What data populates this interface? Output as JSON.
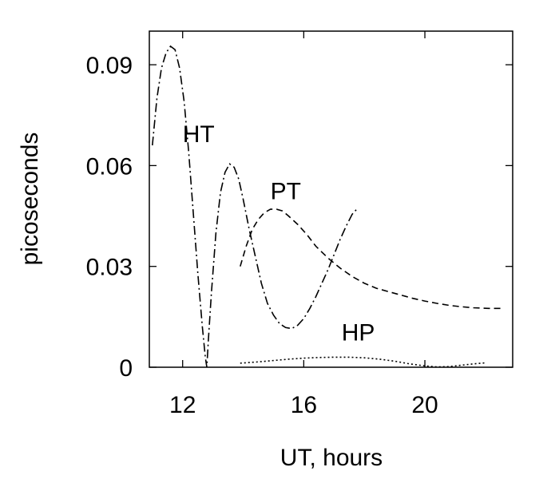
{
  "chart_data": {
    "type": "line",
    "title": "",
    "xlabel": "UT, hours",
    "ylabel": "picoseconds",
    "xlim": [
      10.9,
      22.9
    ],
    "ylim": [
      0,
      0.1
    ],
    "xticks": [
      {
        "value": 12,
        "label": "12"
      },
      {
        "value": 16,
        "label": "16"
      },
      {
        "value": 20,
        "label": "20"
      }
    ],
    "yticks": [
      {
        "value": 0,
        "label": "0"
      },
      {
        "value": 0.03,
        "label": "0.03"
      },
      {
        "value": 0.06,
        "label": "0.06"
      },
      {
        "value": 0.09,
        "label": "0.09"
      }
    ],
    "grid": false,
    "series": [
      {
        "name": "HT",
        "dash": "dash-dot",
        "label_at": {
          "x": 12.0,
          "y": 0.067
        },
        "points": [
          [
            11.0,
            0.066
          ],
          [
            11.15,
            0.08
          ],
          [
            11.3,
            0.089
          ],
          [
            11.45,
            0.0935
          ],
          [
            11.6,
            0.0955
          ],
          [
            11.75,
            0.0945
          ],
          [
            11.9,
            0.089
          ],
          [
            12.05,
            0.079
          ],
          [
            12.2,
            0.064
          ],
          [
            12.35,
            0.046
          ],
          [
            12.5,
            0.028
          ],
          [
            12.65,
            0.012
          ],
          [
            12.75,
            0.003
          ],
          [
            12.8,
            0.0
          ],
          [
            12.85,
            0.008
          ],
          [
            12.95,
            0.022
          ],
          [
            13.1,
            0.04
          ],
          [
            13.25,
            0.052
          ],
          [
            13.4,
            0.058
          ],
          [
            13.55,
            0.0605
          ],
          [
            13.7,
            0.0595
          ],
          [
            13.85,
            0.056
          ],
          [
            14.0,
            0.05
          ],
          [
            14.2,
            0.041
          ],
          [
            14.4,
            0.033
          ],
          [
            14.6,
            0.025
          ],
          [
            14.8,
            0.019
          ],
          [
            15.0,
            0.0155
          ],
          [
            15.2,
            0.013
          ],
          [
            15.4,
            0.0118
          ],
          [
            15.6,
            0.0115
          ],
          [
            15.8,
            0.0125
          ],
          [
            16.0,
            0.0145
          ],
          [
            16.2,
            0.0175
          ],
          [
            16.4,
            0.021
          ],
          [
            16.6,
            0.025
          ],
          [
            16.8,
            0.029
          ],
          [
            17.0,
            0.0335
          ],
          [
            17.2,
            0.038
          ],
          [
            17.4,
            0.042
          ],
          [
            17.6,
            0.0455
          ],
          [
            17.75,
            0.047
          ]
        ]
      },
      {
        "name": "PT",
        "dash": "dashed",
        "label_at": {
          "x": 14.9,
          "y": 0.05
        },
        "points": [
          [
            13.9,
            0.03
          ],
          [
            14.1,
            0.036
          ],
          [
            14.3,
            0.041
          ],
          [
            14.5,
            0.044
          ],
          [
            14.7,
            0.046
          ],
          [
            14.9,
            0.047
          ],
          [
            15.1,
            0.047
          ],
          [
            15.3,
            0.0465
          ],
          [
            15.5,
            0.045
          ],
          [
            15.8,
            0.0425
          ],
          [
            16.1,
            0.0395
          ],
          [
            16.4,
            0.036
          ],
          [
            16.8,
            0.0325
          ],
          [
            17.2,
            0.0295
          ],
          [
            17.6,
            0.027
          ],
          [
            18.0,
            0.025
          ],
          [
            18.4,
            0.0235
          ],
          [
            18.8,
            0.0225
          ],
          [
            19.2,
            0.0215
          ],
          [
            19.6,
            0.0205
          ],
          [
            20.0,
            0.0197
          ],
          [
            20.4,
            0.019
          ],
          [
            20.8,
            0.0184
          ],
          [
            21.2,
            0.018
          ],
          [
            21.6,
            0.0177
          ],
          [
            22.1,
            0.0175
          ],
          [
            22.6,
            0.0175
          ]
        ]
      },
      {
        "name": "HP",
        "dash": "dotted",
        "label_at": {
          "x": 17.25,
          "y": 0.008
        },
        "points": [
          [
            13.9,
            0.0012
          ],
          [
            14.5,
            0.0016
          ],
          [
            15.0,
            0.002
          ],
          [
            15.5,
            0.0024
          ],
          [
            16.0,
            0.0027
          ],
          [
            16.5,
            0.0029
          ],
          [
            17.0,
            0.003
          ],
          [
            17.5,
            0.003
          ],
          [
            18.0,
            0.0028
          ],
          [
            18.5,
            0.0024
          ],
          [
            19.0,
            0.0018
          ],
          [
            19.5,
            0.001
          ],
          [
            20.0,
            0.0004
          ],
          [
            20.4,
            0.0001
          ],
          [
            20.8,
            0.0002
          ],
          [
            21.2,
            0.0006
          ],
          [
            21.6,
            0.001
          ],
          [
            22.0,
            0.0013
          ]
        ]
      }
    ]
  }
}
